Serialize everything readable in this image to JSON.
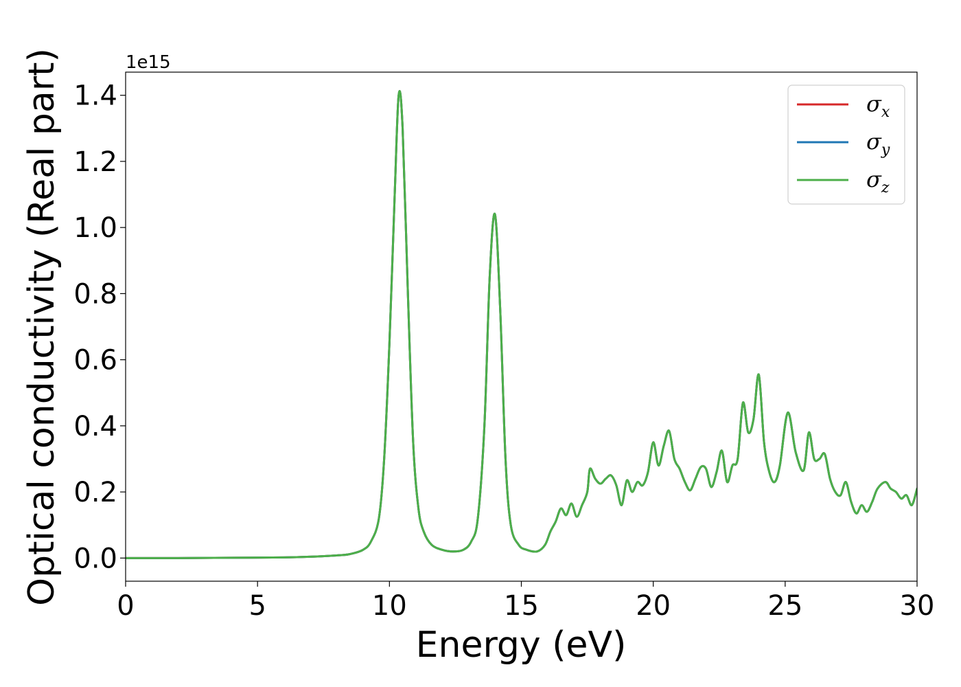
{
  "chart_data": {
    "type": "line",
    "xlabel": "Energy (eV)",
    "ylabel": "Optical conductivity (Real part)",
    "y_offset_label": "1e15",
    "xlim": [
      0,
      30
    ],
    "ylim": [
      -0.07,
      1.47
    ],
    "x_ticks": [
      0,
      5,
      10,
      15,
      20,
      25,
      30
    ],
    "x_tick_labels": [
      "0",
      "5",
      "10",
      "15",
      "20",
      "25",
      "30"
    ],
    "y_ticks": [
      0.0,
      0.2,
      0.4,
      0.6,
      0.8,
      1.0,
      1.2,
      1.4
    ],
    "y_tick_labels": [
      "0.0",
      "0.2",
      "0.4",
      "0.6",
      "0.8",
      "1.0",
      "1.2",
      "1.4"
    ],
    "grid": false,
    "legend_position": "top-right",
    "series": [
      {
        "name": "σx",
        "symbol": "σ",
        "subscript": "x",
        "color": "#d62728"
      },
      {
        "name": "σy",
        "symbol": "σ",
        "subscript": "y",
        "color": "#1f77b4"
      },
      {
        "name": "σz",
        "symbol": "σ",
        "subscript": "z",
        "color": "#4daf4a"
      }
    ],
    "x": [
      0,
      2,
      4,
      6,
      7,
      8,
      8.5,
      9,
      9.3,
      9.6,
      9.8,
      10.0,
      10.2,
      10.35,
      10.5,
      10.7,
      10.9,
      11.1,
      11.3,
      11.6,
      12.0,
      12.4,
      12.8,
      13.1,
      13.35,
      13.6,
      13.8,
      14.0,
      14.2,
      14.4,
      14.6,
      14.9,
      15.2,
      15.6,
      15.9,
      16.1,
      16.3,
      16.5,
      16.7,
      16.9,
      17.1,
      17.3,
      17.5,
      17.6,
      17.8,
      18.0,
      18.2,
      18.4,
      18.6,
      18.8,
      19.0,
      19.2,
      19.4,
      19.6,
      19.8,
      20.0,
      20.2,
      20.4,
      20.6,
      20.8,
      21.0,
      21.2,
      21.4,
      21.6,
      21.8,
      22.0,
      22.2,
      22.4,
      22.6,
      22.8,
      23.0,
      23.2,
      23.4,
      23.6,
      23.8,
      24.0,
      24.2,
      24.4,
      24.6,
      24.8,
      25.1,
      25.4,
      25.7,
      25.9,
      26.1,
      26.3,
      26.5,
      26.7,
      26.9,
      27.1,
      27.3,
      27.5,
      27.7,
      27.9,
      28.1,
      28.3,
      28.5,
      28.8,
      29.0,
      29.2,
      29.4,
      29.6,
      29.8,
      30.0
    ],
    "y": [
      0.0,
      0.0,
      0.001,
      0.002,
      0.004,
      0.008,
      0.012,
      0.025,
      0.05,
      0.12,
      0.3,
      0.65,
      1.1,
      1.4,
      1.3,
      0.8,
      0.35,
      0.15,
      0.08,
      0.04,
      0.025,
      0.02,
      0.025,
      0.05,
      0.12,
      0.4,
      0.85,
      1.04,
      0.75,
      0.3,
      0.1,
      0.04,
      0.025,
      0.02,
      0.04,
      0.08,
      0.11,
      0.15,
      0.13,
      0.165,
      0.125,
      0.16,
      0.2,
      0.27,
      0.24,
      0.225,
      0.24,
      0.25,
      0.22,
      0.16,
      0.235,
      0.2,
      0.23,
      0.22,
      0.26,
      0.35,
      0.28,
      0.34,
      0.385,
      0.3,
      0.27,
      0.23,
      0.205,
      0.24,
      0.275,
      0.27,
      0.215,
      0.26,
      0.325,
      0.23,
      0.28,
      0.3,
      0.47,
      0.38,
      0.42,
      0.555,
      0.35,
      0.26,
      0.23,
      0.28,
      0.44,
      0.32,
      0.265,
      0.38,
      0.3,
      0.3,
      0.315,
      0.24,
      0.2,
      0.19,
      0.23,
      0.17,
      0.135,
      0.16,
      0.14,
      0.17,
      0.21,
      0.23,
      0.21,
      0.2,
      0.18,
      0.19,
      0.16,
      0.21
    ]
  }
}
